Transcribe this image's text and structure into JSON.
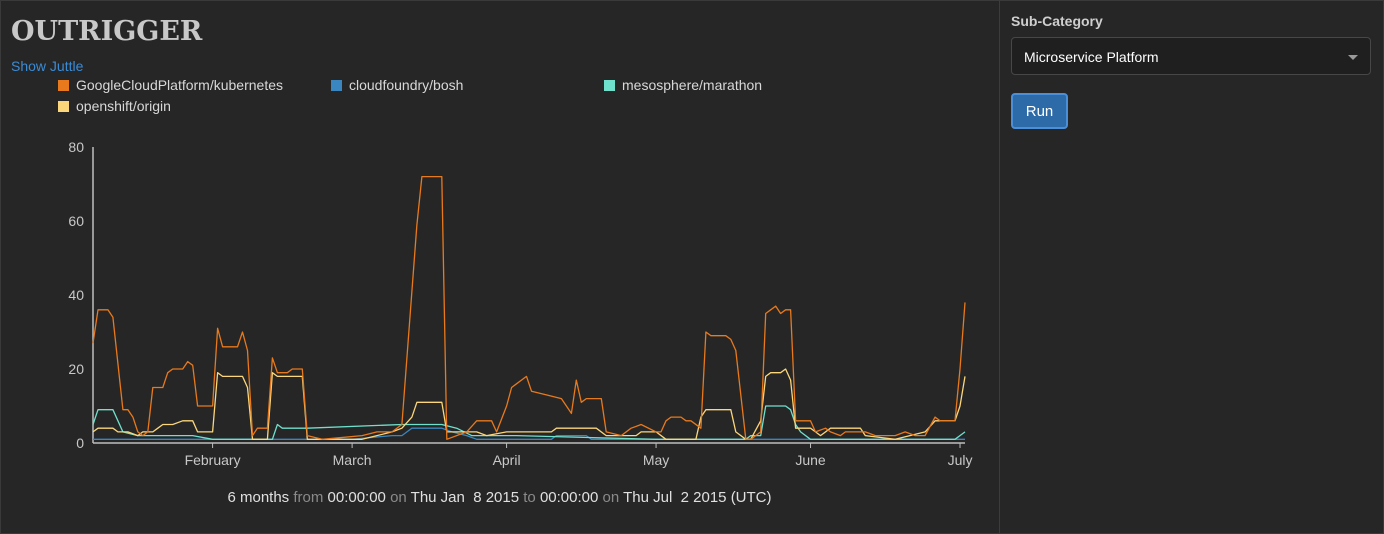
{
  "app": {
    "title": "OUTRIGGER",
    "show_juttle_label": "Show Juttle"
  },
  "sidebar": {
    "subcategory_label": "Sub-Category",
    "subcategory_value": "Microservice Platform",
    "run_label": "Run"
  },
  "timerange": {
    "duration": "6 months",
    "from_word": "from",
    "from_time": "00:00:00",
    "on_word_1": "on",
    "from_date": "Thu Jan  8 2015",
    "to_word": "to",
    "to_time": "00:00:00",
    "on_word_2": "on",
    "to_date": "Thu Jul  2 2015",
    "tz": "(UTC)"
  },
  "chart_data": {
    "type": "line",
    "title": "",
    "xlabel": "",
    "ylabel": "",
    "x_range": [
      "2015-01-08",
      "2015-07-02"
    ],
    "ylim": [
      0,
      80
    ],
    "y_ticks": [
      0,
      20,
      40,
      60,
      80
    ],
    "x_ticks": [
      {
        "date": "2015-02-01",
        "label": "February"
      },
      {
        "date": "2015-03-01",
        "label": "March"
      },
      {
        "date": "2015-04-01",
        "label": "April"
      },
      {
        "date": "2015-05-01",
        "label": "May"
      },
      {
        "date": "2015-06-01",
        "label": "June"
      },
      {
        "date": "2015-07-01",
        "label": "July"
      }
    ],
    "grid": false,
    "legend_position": "top-left",
    "series": [
      {
        "name": "GoogleCloudPlatform/kubernetes",
        "color": "#e8791c",
        "points": [
          [
            "2015-01-08",
            27
          ],
          [
            "2015-01-09",
            36
          ],
          [
            "2015-01-11",
            36
          ],
          [
            "2015-01-12",
            34
          ],
          [
            "2015-01-14",
            9
          ],
          [
            "2015-01-15",
            9
          ],
          [
            "2015-01-16",
            7
          ],
          [
            "2015-01-17",
            3
          ],
          [
            "2015-01-18",
            2
          ],
          [
            "2015-01-19",
            3
          ],
          [
            "2015-01-20",
            15
          ],
          [
            "2015-01-22",
            15
          ],
          [
            "2015-01-23",
            19
          ],
          [
            "2015-01-24",
            20
          ],
          [
            "2015-01-25",
            20
          ],
          [
            "2015-01-26",
            20
          ],
          [
            "2015-01-27",
            22
          ],
          [
            "2015-01-28",
            21
          ],
          [
            "2015-01-29",
            10
          ],
          [
            "2015-02-01",
            10
          ],
          [
            "2015-02-02",
            31
          ],
          [
            "2015-02-03",
            26
          ],
          [
            "2015-02-05",
            26
          ],
          [
            "2015-02-06",
            26
          ],
          [
            "2015-02-07",
            30
          ],
          [
            "2015-02-08",
            25
          ],
          [
            "2015-02-09",
            2
          ],
          [
            "2015-02-10",
            4
          ],
          [
            "2015-02-11",
            4
          ],
          [
            "2015-02-12",
            4
          ],
          [
            "2015-02-13",
            23
          ],
          [
            "2015-02-14",
            19
          ],
          [
            "2015-02-16",
            19
          ],
          [
            "2015-02-17",
            20
          ],
          [
            "2015-02-19",
            20
          ],
          [
            "2015-02-20",
            2
          ],
          [
            "2015-02-23",
            1
          ],
          [
            "2015-03-03",
            2
          ],
          [
            "2015-03-06",
            3
          ],
          [
            "2015-03-09",
            3
          ],
          [
            "2015-03-11",
            5
          ],
          [
            "2015-03-14",
            59
          ],
          [
            "2015-03-15",
            72
          ],
          [
            "2015-03-19",
            72
          ],
          [
            "2015-03-20",
            1
          ],
          [
            "2015-03-24",
            3
          ],
          [
            "2015-03-26",
            6
          ],
          [
            "2015-03-29",
            6
          ],
          [
            "2015-03-30",
            3
          ],
          [
            "2015-04-01",
            10
          ],
          [
            "2015-04-02",
            15
          ],
          [
            "2015-04-03",
            16
          ],
          [
            "2015-04-05",
            18
          ],
          [
            "2015-04-06",
            14
          ],
          [
            "2015-04-09",
            13
          ],
          [
            "2015-04-12",
            12
          ],
          [
            "2015-04-14",
            8
          ],
          [
            "2015-04-15",
            17
          ],
          [
            "2015-04-16",
            11
          ],
          [
            "2015-04-17",
            12
          ],
          [
            "2015-04-18",
            12
          ],
          [
            "2015-04-20",
            12
          ],
          [
            "2015-04-21",
            3
          ],
          [
            "2015-04-24",
            2
          ],
          [
            "2015-04-26",
            4
          ],
          [
            "2015-04-28",
            5
          ],
          [
            "2015-05-01",
            3
          ],
          [
            "2015-05-02",
            3
          ],
          [
            "2015-05-03",
            6
          ],
          [
            "2015-05-04",
            7
          ],
          [
            "2015-05-06",
            7
          ],
          [
            "2015-05-07",
            6
          ],
          [
            "2015-05-08",
            6
          ],
          [
            "2015-05-10",
            4
          ],
          [
            "2015-05-11",
            30
          ],
          [
            "2015-05-12",
            29
          ],
          [
            "2015-05-15",
            29
          ],
          [
            "2015-05-16",
            28
          ],
          [
            "2015-05-17",
            25
          ],
          [
            "2015-05-18",
            13
          ],
          [
            "2015-05-19",
            1
          ],
          [
            "2015-05-20",
            1
          ],
          [
            "2015-05-21",
            2
          ],
          [
            "2015-05-22",
            3
          ],
          [
            "2015-05-23",
            35
          ],
          [
            "2015-05-24",
            36
          ],
          [
            "2015-05-25",
            37
          ],
          [
            "2015-05-26",
            35
          ],
          [
            "2015-05-27",
            36
          ],
          [
            "2015-05-28",
            36
          ],
          [
            "2015-05-29",
            6
          ],
          [
            "2015-05-31",
            6
          ],
          [
            "2015-06-01",
            6
          ],
          [
            "2015-06-02",
            3
          ],
          [
            "2015-06-04",
            4
          ],
          [
            "2015-06-05",
            3
          ],
          [
            "2015-06-07",
            2
          ],
          [
            "2015-06-08",
            3
          ],
          [
            "2015-06-12",
            3
          ],
          [
            "2015-06-14",
            2
          ],
          [
            "2015-06-16",
            2
          ],
          [
            "2015-06-18",
            2
          ],
          [
            "2015-06-20",
            3
          ],
          [
            "2015-06-22",
            2
          ],
          [
            "2015-06-24",
            2
          ],
          [
            "2015-06-26",
            7
          ],
          [
            "2015-06-27",
            6
          ],
          [
            "2015-06-29",
            6
          ],
          [
            "2015-06-30",
            6
          ],
          [
            "2015-07-01",
            20
          ],
          [
            "2015-07-02",
            38
          ]
        ]
      },
      {
        "name": "cloudfoundry/bosh",
        "color": "#3a86c0",
        "points": [
          [
            "2015-01-08",
            1
          ],
          [
            "2015-02-10",
            1
          ],
          [
            "2015-03-01",
            1
          ],
          [
            "2015-03-09",
            2
          ],
          [
            "2015-03-11",
            2
          ],
          [
            "2015-03-12",
            3
          ],
          [
            "2015-03-13",
            4
          ],
          [
            "2015-03-16",
            4
          ],
          [
            "2015-03-19",
            4
          ],
          [
            "2015-03-21",
            3
          ],
          [
            "2015-03-24",
            2
          ],
          [
            "2015-03-26",
            1
          ],
          [
            "2015-03-28",
            1
          ],
          [
            "2015-03-30",
            1
          ],
          [
            "2015-04-05",
            1
          ],
          [
            "2015-04-10",
            1
          ],
          [
            "2015-04-11",
            2
          ],
          [
            "2015-04-17",
            2
          ],
          [
            "2015-04-18",
            1
          ],
          [
            "2015-05-18",
            1
          ],
          [
            "2015-06-01",
            1
          ],
          [
            "2015-07-02",
            1
          ]
        ]
      },
      {
        "name": "mesosphere/marathon",
        "color": "#6fe0cc",
        "points": [
          [
            "2015-01-08",
            5
          ],
          [
            "2015-01-09",
            9
          ],
          [
            "2015-01-12",
            9
          ],
          [
            "2015-01-14",
            3
          ],
          [
            "2015-01-17",
            2
          ],
          [
            "2015-01-26",
            2
          ],
          [
            "2015-01-28",
            2
          ],
          [
            "2015-02-01",
            1
          ],
          [
            "2015-02-10",
            1
          ],
          [
            "2015-02-13",
            1
          ],
          [
            "2015-02-14",
            5
          ],
          [
            "2015-02-15",
            4
          ],
          [
            "2015-02-20",
            4
          ],
          [
            "2015-03-11",
            5
          ],
          [
            "2015-03-14",
            5
          ],
          [
            "2015-03-17",
            5
          ],
          [
            "2015-03-19",
            5
          ],
          [
            "2015-03-22",
            4
          ],
          [
            "2015-03-25",
            2
          ],
          [
            "2015-03-28",
            2
          ],
          [
            "2015-04-03",
            2
          ],
          [
            "2015-05-01",
            1
          ],
          [
            "2015-05-10",
            1
          ],
          [
            "2015-05-14",
            1
          ],
          [
            "2015-05-19",
            1
          ],
          [
            "2015-05-20",
            2
          ],
          [
            "2015-05-22",
            2
          ],
          [
            "2015-05-23",
            10
          ],
          [
            "2015-05-27",
            10
          ],
          [
            "2015-05-28",
            9
          ],
          [
            "2015-05-29",
            5
          ],
          [
            "2015-05-30",
            3
          ],
          [
            "2015-06-01",
            1
          ],
          [
            "2015-06-30",
            1
          ],
          [
            "2015-07-02",
            3
          ]
        ]
      },
      {
        "name": "openshift/origin",
        "color": "#fbd67a",
        "points": [
          [
            "2015-01-08",
            3
          ],
          [
            "2015-01-09",
            4
          ],
          [
            "2015-01-12",
            4
          ],
          [
            "2015-01-13",
            3
          ],
          [
            "2015-01-15",
            3
          ],
          [
            "2015-01-17",
            2
          ],
          [
            "2015-01-18",
            3
          ],
          [
            "2015-01-20",
            3
          ],
          [
            "2015-01-21",
            4
          ],
          [
            "2015-01-22",
            5
          ],
          [
            "2015-01-24",
            5
          ],
          [
            "2015-01-26",
            6
          ],
          [
            "2015-01-28",
            6
          ],
          [
            "2015-01-29",
            3
          ],
          [
            "2015-02-01",
            3
          ],
          [
            "2015-02-02",
            19
          ],
          [
            "2015-02-03",
            18
          ],
          [
            "2015-02-07",
            18
          ],
          [
            "2015-02-08",
            15
          ],
          [
            "2015-02-09",
            1
          ],
          [
            "2015-02-12",
            1
          ],
          [
            "2015-02-13",
            19
          ],
          [
            "2015-02-14",
            18
          ],
          [
            "2015-02-19",
            18
          ],
          [
            "2015-02-20",
            1
          ],
          [
            "2015-03-03",
            1
          ],
          [
            "2015-03-09",
            3
          ],
          [
            "2015-03-11",
            4
          ],
          [
            "2015-03-13",
            7
          ],
          [
            "2015-03-14",
            11
          ],
          [
            "2015-03-19",
            11
          ],
          [
            "2015-03-20",
            3
          ],
          [
            "2015-03-26",
            3
          ],
          [
            "2015-03-28",
            2
          ],
          [
            "2015-04-01",
            3
          ],
          [
            "2015-04-10",
            3
          ],
          [
            "2015-04-11",
            4
          ],
          [
            "2015-04-19",
            4
          ],
          [
            "2015-04-21",
            2
          ],
          [
            "2015-04-27",
            2
          ],
          [
            "2015-04-28",
            3
          ],
          [
            "2015-05-01",
            3
          ],
          [
            "2015-05-03",
            1
          ],
          [
            "2015-05-09",
            1
          ],
          [
            "2015-05-10",
            7
          ],
          [
            "2015-05-11",
            9
          ],
          [
            "2015-05-16",
            9
          ],
          [
            "2015-05-17",
            3
          ],
          [
            "2015-05-19",
            1
          ],
          [
            "2015-05-20",
            1
          ],
          [
            "2015-05-22",
            6
          ],
          [
            "2015-05-23",
            18
          ],
          [
            "2015-05-24",
            19
          ],
          [
            "2015-05-26",
            19
          ],
          [
            "2015-05-27",
            20
          ],
          [
            "2015-05-28",
            17
          ],
          [
            "2015-05-29",
            4
          ],
          [
            "2015-06-01",
            4
          ],
          [
            "2015-06-02",
            3
          ],
          [
            "2015-06-03",
            2
          ],
          [
            "2015-06-05",
            4
          ],
          [
            "2015-06-11",
            4
          ],
          [
            "2015-06-12",
            2
          ],
          [
            "2015-06-18",
            1
          ],
          [
            "2015-06-24",
            3
          ],
          [
            "2015-06-26",
            6
          ],
          [
            "2015-06-30",
            6
          ],
          [
            "2015-07-01",
            10
          ],
          [
            "2015-07-02",
            18
          ]
        ]
      }
    ]
  }
}
